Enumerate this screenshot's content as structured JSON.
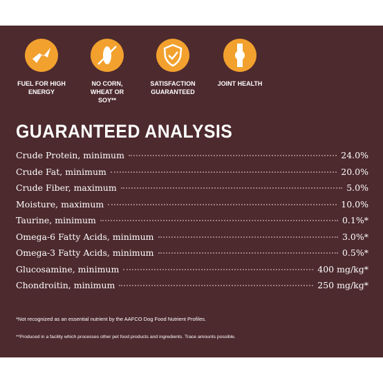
{
  "features": [
    {
      "label": [
        "FUEL FOR HIGH",
        "ENERGY"
      ]
    },
    {
      "label": [
        "NO CORN,",
        "WHEAT OR",
        "SOY**"
      ]
    },
    {
      "label": [
        "SATISFACTION",
        "GUARANTEED"
      ]
    },
    {
      "label": [
        "JOINT HEALTH"
      ]
    }
  ],
  "analysis": {
    "title": "GUARANTEED ANALYSIS",
    "rows": [
      [
        "Crude Protein, minimum",
        "24.0%"
      ],
      [
        "Crude Fat, minimum",
        "20.0%"
      ],
      [
        "Crude Fiber, maximum",
        "5.0%"
      ],
      [
        "Moisture, maximum",
        "10.0%"
      ],
      [
        "Taurine, minimum",
        "0.1%*"
      ],
      [
        "Omega-6 Fatty Acids, minimum",
        "3.0%*"
      ],
      [
        "Omega-3 Fatty Acids, minimum",
        "0.5%*"
      ],
      [
        "Glucosamine, minimum",
        "400 mg/kg*"
      ],
      [
        "Chondroitin, minimum",
        "250 mg/kg*"
      ]
    ]
  },
  "footnotes": [
    "*Not recognized as an essential nutrient by the AAFCO Dog Food Nutrient Profiles.",
    "**Produced in a facility which processes other pet food products and ingredients. Trace amounts possible."
  ]
}
